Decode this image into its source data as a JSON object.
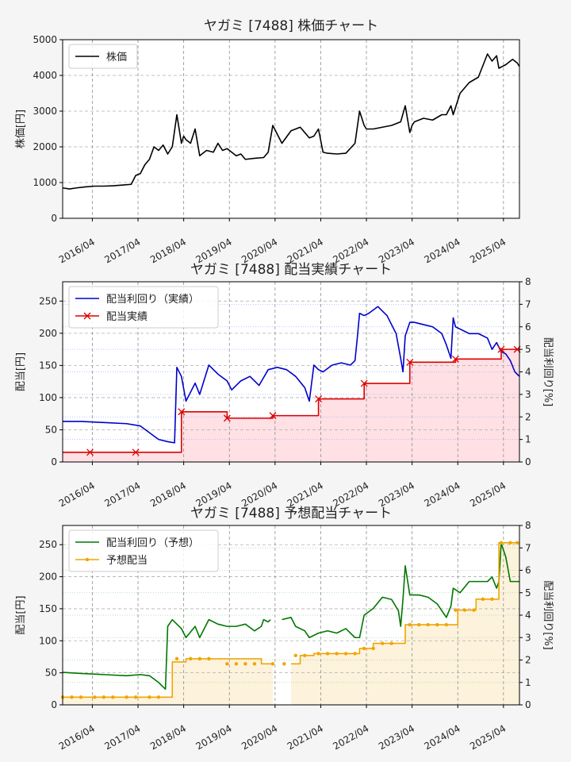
{
  "chart_data": [
    {
      "type": "line",
      "title": "ヤガミ [7488]  株価チャート",
      "ylabel": "株価[円]",
      "ylim": [
        0,
        5000
      ],
      "yticks": [
        "0",
        "1000",
        "2000",
        "3000",
        "4000",
        "5000"
      ],
      "xticks": [
        "2016/04",
        "2017/04",
        "2018/04",
        "2019/04",
        "2020/04",
        "2021/04",
        "2022/04",
        "2023/04",
        "2024/04",
        "2025/04"
      ],
      "grid": true,
      "legend": "top-left",
      "series": [
        {
          "name": "株価",
          "color": "#000000",
          "x": [
            2015.6,
            2015.75,
            2015.9,
            2016.1,
            2016.3,
            2016.5,
            2016.7,
            2016.9,
            2017.1,
            2017.2,
            2017.3,
            2017.4,
            2017.5,
            2017.6,
            2017.7,
            2017.8,
            2017.9,
            2018.0,
            2018.1,
            2018.2,
            2018.25,
            2018.3,
            2018.4,
            2018.5,
            2018.6,
            2018.75,
            2018.9,
            2019.0,
            2019.1,
            2019.2,
            2019.3,
            2019.4,
            2019.5,
            2019.6,
            2019.8,
            2020.0,
            2020.1,
            2020.2,
            2020.4,
            2020.6,
            2020.8,
            2021.0,
            2021.1,
            2021.2,
            2021.3,
            2021.4,
            2021.6,
            2021.8,
            2022.0,
            2022.1,
            2022.2,
            2022.25,
            2022.4,
            2022.6,
            2022.8,
            2023.0,
            2023.1,
            2023.2,
            2023.25,
            2023.3,
            2023.5,
            2023.7,
            2023.9,
            2024.0,
            2024.1,
            2024.15,
            2024.2,
            2024.3,
            2024.5,
            2024.7,
            2024.9,
            2025.0,
            2025.1,
            2025.15,
            2025.3,
            2025.45,
            2025.55,
            2025.6
          ],
          "y": [
            850,
            820,
            850,
            880,
            900,
            900,
            910,
            930,
            950,
            1200,
            1250,
            1500,
            1650,
            2000,
            1900,
            2050,
            1800,
            2000,
            2900,
            2100,
            2300,
            2200,
            2100,
            2500,
            1750,
            1900,
            1850,
            2100,
            1900,
            1950,
            1850,
            1750,
            1800,
            1650,
            1680,
            1700,
            1850,
            2600,
            2100,
            2450,
            2550,
            2250,
            2300,
            2500,
            1850,
            1820,
            1800,
            1820,
            2100,
            3000,
            2600,
            2500,
            2500,
            2550,
            2600,
            2700,
            3150,
            2400,
            2600,
            2700,
            2800,
            2750,
            2900,
            2900,
            3150,
            2900,
            3100,
            3500,
            3800,
            3950,
            4600,
            4400,
            4550,
            4200,
            4300,
            4450,
            4350,
            4250
          ]
        }
      ]
    },
    {
      "type": "line",
      "title": "ヤガミ [7488]  配当実績チャート",
      "ylabel": "配当[円]",
      "y2label": "配当利回り[%]",
      "ylim": [
        0,
        280
      ],
      "yticks": [
        "0",
        "50",
        "100",
        "150",
        "200",
        "250"
      ],
      "y2lim": [
        0,
        8
      ],
      "y2ticks": [
        "0",
        "1",
        "2",
        "3",
        "4",
        "5",
        "6",
        "7",
        "8"
      ],
      "xticks": [
        "2016/04",
        "2017/04",
        "2018/04",
        "2019/04",
        "2020/04",
        "2021/04",
        "2022/04",
        "2023/04",
        "2024/04",
        "2025/04"
      ],
      "grid": true,
      "legend": "top-left",
      "series": [
        {
          "name": "配当利回り（実績）",
          "color": "#0000cc",
          "axis": "right",
          "x": [
            2015.6,
            2016.0,
            2016.5,
            2017.0,
            2017.3,
            2017.5,
            2017.7,
            2017.9,
            2018.05,
            2018.1,
            2018.2,
            2018.3,
            2018.5,
            2018.6,
            2018.8,
            2019.0,
            2019.2,
            2019.3,
            2019.5,
            2019.7,
            2019.9,
            2020.1,
            2020.3,
            2020.5,
            2020.7,
            2020.9,
            2021.0,
            2021.1,
            2021.2,
            2021.3,
            2021.5,
            2021.7,
            2021.9,
            2022.0,
            2022.05,
            2022.1,
            2022.2,
            2022.3,
            2022.5,
            2022.7,
            2022.9,
            2023.0,
            2023.05,
            2023.1,
            2023.2,
            2023.3,
            2023.5,
            2023.7,
            2023.9,
            2024.0,
            2024.1,
            2024.15,
            2024.2,
            2024.3,
            2024.5,
            2024.7,
            2024.9,
            2025.0,
            2025.1,
            2025.2,
            2025.3,
            2025.4,
            2025.5,
            2025.6
          ],
          "y": [
            1.8,
            1.8,
            1.75,
            1.7,
            1.6,
            1.3,
            1.0,
            0.9,
            0.85,
            4.2,
            3.8,
            2.7,
            3.5,
            3.0,
            4.3,
            3.9,
            3.6,
            3.2,
            3.6,
            3.8,
            3.4,
            4.1,
            4.2,
            4.1,
            3.8,
            3.3,
            2.7,
            4.3,
            4.1,
            4.0,
            4.3,
            4.4,
            4.3,
            4.5,
            5.5,
            6.6,
            6.5,
            6.6,
            6.9,
            6.5,
            5.7,
            4.6,
            4.0,
            5.6,
            6.2,
            6.2,
            6.1,
            6.0,
            5.7,
            5.2,
            4.6,
            6.4,
            6.0,
            5.9,
            5.7,
            5.7,
            5.5,
            5.0,
            5.3,
            4.9,
            4.8,
            4.5,
            4.0,
            3.8
          ]
        },
        {
          "name": "配当実績",
          "color": "#dd0000",
          "axis": "left",
          "step": true,
          "fill": "#ffe0e4",
          "x": [
            2015.6,
            2016.2,
            2017.2,
            2018.2,
            2019.2,
            2020.2,
            2021.2,
            2022.2,
            2023.2,
            2024.2,
            2025.2,
            2025.6
          ],
          "y": [
            15,
            15,
            15,
            78,
            68,
            72,
            98,
            122,
            155,
            160,
            175,
            175
          ],
          "markers": [
            [
              2016.2,
              15
            ],
            [
              2017.2,
              15
            ],
            [
              2018.2,
              78
            ],
            [
              2019.2,
              68
            ],
            [
              2020.2,
              72
            ],
            [
              2021.2,
              98
            ],
            [
              2022.2,
              122
            ],
            [
              2023.2,
              155
            ],
            [
              2024.2,
              160
            ],
            [
              2025.2,
              175
            ],
            [
              2025.55,
              175
            ]
          ]
        }
      ]
    },
    {
      "type": "line",
      "title": "ヤガミ [7488]  予想配当チャート",
      "ylabel": "配当[円]",
      "y2label": "配当利回り[%]",
      "ylim": [
        0,
        280
      ],
      "yticks": [
        "0",
        "50",
        "100",
        "150",
        "200",
        "250"
      ],
      "y2lim": [
        0,
        8
      ],
      "y2ticks": [
        "0",
        "1",
        "2",
        "3",
        "4",
        "5",
        "6",
        "7",
        "8"
      ],
      "xticks": [
        "2016/04",
        "2017/04",
        "2018/04",
        "2019/04",
        "2020/04",
        "2021/04",
        "2022/04",
        "2023/04",
        "2024/04",
        "2025/04"
      ],
      "grid": true,
      "legend": "top-left",
      "series": [
        {
          "name": "配当利回り（予想）",
          "color": "#007700",
          "axis": "right",
          "x": [
            2015.6,
            2016.0,
            2016.5,
            2017.0,
            2017.3,
            2017.5,
            2017.7,
            2017.8,
            2017.85,
            2017.9,
            2018.0,
            2018.2,
            2018.3,
            2018.5,
            2018.6,
            2018.8,
            2019.0,
            2019.2,
            2019.4,
            2019.6,
            2019.8,
            2019.95,
            2020.0,
            2020.1,
            2020.15,
            null,
            2020.4,
            2020.6,
            2020.7,
            2020.9,
            2021.0,
            2021.2,
            2021.4,
            2021.6,
            2021.8,
            2022.0,
            2022.1,
            2022.2,
            2022.4,
            2022.6,
            2022.8,
            2022.95,
            2023.0,
            2023.05,
            2023.1,
            2023.2,
            2023.4,
            2023.6,
            2023.8,
            2024.0,
            2024.1,
            2024.15,
            2024.3,
            2024.5,
            2024.7,
            2024.9,
            2025.0,
            2025.1,
            2025.15,
            2025.2,
            2025.3,
            2025.4,
            2025.5,
            2025.6
          ],
          "y": [
            1.45,
            1.4,
            1.35,
            1.3,
            1.35,
            1.3,
            1.0,
            0.8,
            0.7,
            3.5,
            3.8,
            3.4,
            3.0,
            3.5,
            3.0,
            3.8,
            3.6,
            3.5,
            3.5,
            3.6,
            3.3,
            3.5,
            3.8,
            3.7,
            3.8,
            null,
            3.8,
            3.9,
            3.5,
            3.3,
            3.0,
            3.2,
            3.3,
            3.2,
            3.4,
            3.0,
            3.0,
            4.0,
            4.3,
            4.8,
            4.7,
            4.2,
            3.5,
            4.7,
            6.2,
            4.9,
            4.9,
            4.8,
            4.5,
            3.9,
            4.4,
            5.2,
            5.0,
            5.5,
            5.5,
            5.5,
            5.7,
            5.2,
            5.5,
            7.2,
            6.6,
            5.5,
            5.5,
            5.5
          ]
        },
        {
          "name": "予想配当",
          "color": "#f0a500",
          "axis": "left",
          "step": true,
          "fill": "#fdf2dc",
          "x": [
            2015.6,
            2017.85,
            2018.0,
            2018.3,
            2019.0,
            2019.95,
            2020.2,
            2020.4,
            2020.6,
            2020.8,
            2021.1,
            2021.4,
            2022.1,
            2022.4,
            2022.95,
            2023.1,
            2024.1,
            2024.25,
            2024.65,
            2025.15,
            2025.6
          ],
          "y": [
            12,
            12,
            67,
            72,
            72,
            64,
            64,
            null,
            64,
            77,
            80,
            80,
            88,
            96,
            96,
            125,
            125,
            148,
            165,
            253,
            253
          ],
          "markers": [
            [
              2015.6,
              12
            ],
            [
              2015.8,
              12
            ],
            [
              2016.0,
              12
            ],
            [
              2016.3,
              12
            ],
            [
              2016.5,
              12
            ],
            [
              2016.7,
              12
            ],
            [
              2017.0,
              12
            ],
            [
              2017.2,
              12
            ],
            [
              2017.5,
              12
            ],
            [
              2017.7,
              12
            ],
            [
              2018.1,
              72
            ],
            [
              2018.4,
              72
            ],
            [
              2018.6,
              72
            ],
            [
              2018.8,
              72
            ],
            [
              2019.2,
              64
            ],
            [
              2019.4,
              64
            ],
            [
              2019.6,
              64
            ],
            [
              2019.8,
              64
            ],
            [
              2020.2,
              64
            ],
            [
              2020.45,
              64
            ],
            [
              2020.7,
              77
            ],
            [
              2020.9,
              77
            ],
            [
              2021.2,
              80
            ],
            [
              2021.4,
              80
            ],
            [
              2021.6,
              80
            ],
            [
              2021.8,
              80
            ],
            [
              2022.0,
              80
            ],
            [
              2022.2,
              88
            ],
            [
              2022.4,
              88
            ],
            [
              2022.6,
              96
            ],
            [
              2022.8,
              96
            ],
            [
              2023.2,
              125
            ],
            [
              2023.4,
              125
            ],
            [
              2023.6,
              125
            ],
            [
              2023.8,
              125
            ],
            [
              2024.0,
              125
            ],
            [
              2024.2,
              148
            ],
            [
              2024.4,
              148
            ],
            [
              2024.6,
              148
            ],
            [
              2024.8,
              165
            ],
            [
              2025.0,
              165
            ],
            [
              2025.2,
              253
            ],
            [
              2025.4,
              253
            ],
            [
              2025.55,
              253
            ]
          ]
        }
      ]
    }
  ]
}
